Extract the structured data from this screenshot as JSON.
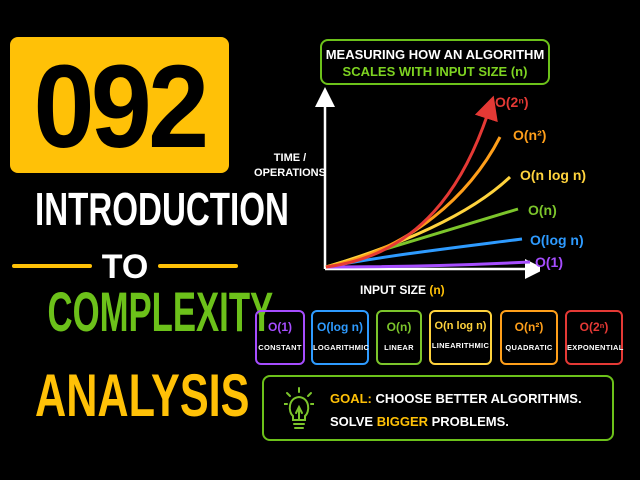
{
  "episode": {
    "number": "092"
  },
  "title": {
    "line1": "INTRODUCTION",
    "line2": "TO",
    "line3": "COMPLEXITY",
    "line4": "ANALYSIS"
  },
  "header": {
    "line1": "MEASURING HOW AN ALGORITHM",
    "line2": "SCALES WITH INPUT SIZE (n)"
  },
  "axes": {
    "y_label_1": "TIME /",
    "y_label_2": "OPERATIONS",
    "x_label_main": "INPUT SIZE",
    "x_label_var": "(n)"
  },
  "curves": [
    {
      "label": "O(2ⁿ)",
      "color": "#e53935"
    },
    {
      "label": "O(n²)",
      "color": "#ff9f1a"
    },
    {
      "label": "O(n log n)",
      "color": "#ffd33d"
    },
    {
      "label": "O(n)",
      "color": "#7cc52b"
    },
    {
      "label": "O(log n)",
      "color": "#2e9bff"
    },
    {
      "label": "O(1)",
      "color": "#a64dff"
    }
  ],
  "legend": [
    {
      "notation": "O(1)",
      "name": "CONSTANT",
      "color": "#a64dff"
    },
    {
      "notation": "O(log n)",
      "name": "LOGARITHMIC",
      "color": "#2e9bff"
    },
    {
      "notation": "O(n)",
      "name": "LINEAR",
      "color": "#7cc52b"
    },
    {
      "notation": "O(n log n)",
      "name": "LINEARITHMIC",
      "color": "#ffd33d"
    },
    {
      "notation": "O(n²)",
      "name": "QUADRATIC",
      "color": "#ff9f1a"
    },
    {
      "notation": "O(2ⁿ)",
      "name": "EXPONENTIAL",
      "color": "#e53935"
    }
  ],
  "goal": {
    "key": "GOAL:",
    "line1_rest": " CHOOSE BETTER ALGORITHMS.",
    "line2_pre": "SOLVE ",
    "line2_accent": "BIGGER",
    "line2_post": " PROBLEMS.",
    "icon": "lightbulb-icon"
  }
}
